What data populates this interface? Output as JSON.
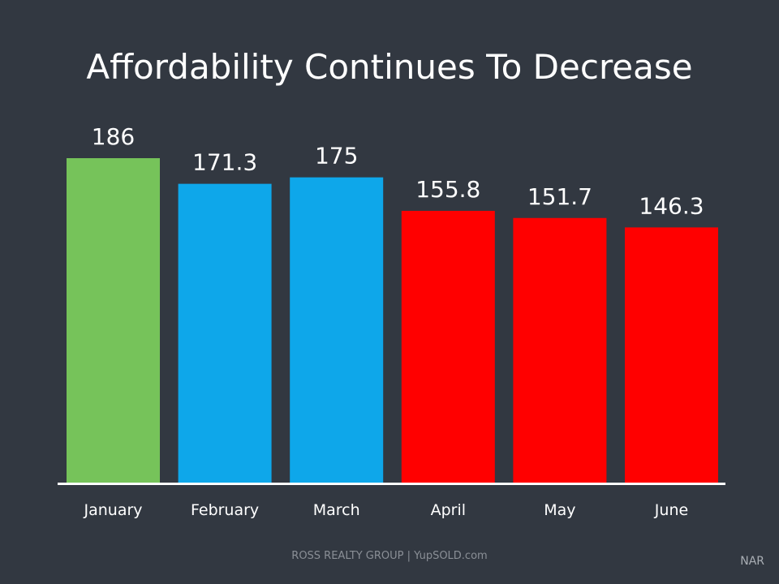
{
  "chart_data": {
    "type": "bar",
    "title": "Affordability Continues To Decrease",
    "categories": [
      "January",
      "February",
      "March",
      "April",
      "May",
      "June"
    ],
    "values": [
      186,
      171.3,
      175,
      155.8,
      151.7,
      146.3
    ],
    "value_labels": [
      "186",
      "171.3",
      "175",
      "155.8",
      "151.7",
      "146.3"
    ],
    "colors": [
      "#76c35a",
      "#0ea7ea",
      "#0ea7ea",
      "#ff0000",
      "#ff0000",
      "#ff0000"
    ],
    "xlabel": "",
    "ylabel": "",
    "ylim": [
      0,
      186
    ],
    "grid": false,
    "legend": "none",
    "axis_color": "#ffffff",
    "label_color": "#ffffff"
  },
  "footer": "ROSS REALTY GROUP | YupSOLD.com",
  "source": "NAR"
}
